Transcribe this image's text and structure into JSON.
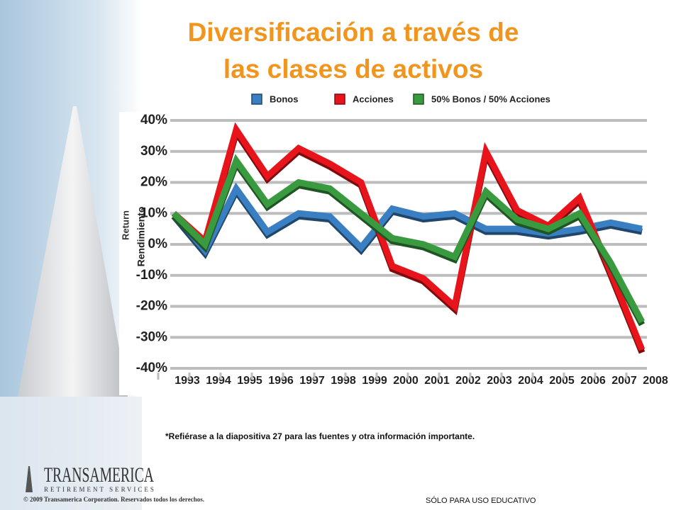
{
  "chart_data": {
    "type": "line",
    "title": [
      "Diversificación a través de",
      "las clases de activos"
    ],
    "y_label": [
      "Return",
      "Rendimiento"
    ],
    "categories": [
      "1993",
      "1994",
      "1995",
      "1996",
      "1997",
      "1998",
      "1999",
      "2000",
      "2001",
      "2002",
      "2003",
      "2004",
      "2005",
      "2006",
      "2007",
      "2008"
    ],
    "series": [
      {
        "name": "Bonos",
        "color": "#3a7fc1",
        "values": [
          10,
          -2,
          18,
          4,
          10,
          9,
          -1,
          11.5,
          9,
          10,
          5,
          5,
          3.5,
          5,
          7,
          5
        ]
      },
      {
        "name": "Acciones",
        "color": "#e8141c",
        "values": [
          10,
          1,
          37,
          22,
          31,
          26,
          20,
          -7,
          -11,
          -20,
          30,
          11,
          6,
          15,
          -9,
          -34
        ]
      },
      {
        "name": "50% Bonos / 50% Acciones",
        "color": "#3a9a3f",
        "values": [
          10,
          0,
          27,
          13,
          20,
          18,
          10,
          2,
          0,
          -4,
          17,
          8,
          5,
          10,
          -6,
          -25
        ]
      }
    ],
    "ylim": [
      -40,
      40
    ],
    "yticks": [
      {
        "value": -40,
        "label": "-40%"
      },
      {
        "value": -30,
        "label": "-30%"
      },
      {
        "value": -20,
        "label": "-20%"
      },
      {
        "value": -10,
        "label": "-10%"
      },
      {
        "value": 0,
        "label": "0%"
      },
      {
        "value": 10,
        "label": "10%"
      },
      {
        "value": 20,
        "label": "20%"
      },
      {
        "value": 30,
        "label": "30%"
      },
      {
        "value": 40,
        "label": "40%"
      }
    ],
    "grid": true
  },
  "footnote": "*Refiérase a la diapositiva 27 para las fuentes y otra información importante.",
  "logo": {
    "name": "TRANSAMERICA",
    "tagline": "RETIREMENT SERVICES"
  },
  "copyright": "© 2009 Transamerica Corporation. Reservados todos los derechos.",
  "footer": "SÓLO PARA USO EDUCATIVO"
}
